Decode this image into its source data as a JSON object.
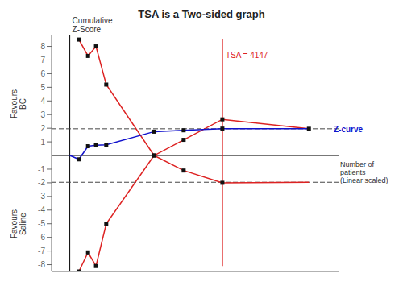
{
  "chart_data": {
    "type": "line",
    "title": "TSA is a Two-sided graph",
    "xlabel": "Number of\npatients\n(Linear scaled)",
    "ylabel": "Cumulative\nZ-Score",
    "annotations": [
      {
        "text": "TSA = 4147",
        "color": "#dd2222"
      },
      {
        "text": "Z-curve",
        "color": "#1111cc"
      },
      {
        "text": "Favours\nBC"
      },
      {
        "text": "Favours\nSaline"
      }
    ],
    "xlim": [
      -0.08,
      1.18
    ],
    "ylim": [
      -8.5,
      8.8
    ],
    "yticks": [
      -8,
      -7,
      -6,
      -5,
      -4,
      -3,
      -2,
      -1,
      1,
      2,
      3,
      4,
      5,
      6,
      7,
      8
    ],
    "tick_labels": "y",
    "series": [
      {
        "type": "hline",
        "values": [
          1.96,
          -1.96
        ],
        "color": "#444444",
        "line_style": "dashed"
      },
      {
        "type": "line",
        "x": [
          0.67,
          0.67
        ],
        "values": [
          -8.1,
          8.5
        ],
        "color": "#dd2222"
      },
      {
        "type": "line",
        "x": [
          0.04,
          0.08,
          0.115,
          0.16,
          0.37,
          0.5,
          0.67,
          1.05
        ],
        "values": [
          8.5,
          7.3,
          8.0,
          5.2,
          0.0,
          1.15,
          2.65,
          1.96
        ],
        "color": "#dd2222"
      },
      {
        "type": "line",
        "x": [
          0.04,
          0.08,
          0.115,
          0.16,
          0.37,
          0.5,
          0.67,
          1.05
        ],
        "values": [
          -8.5,
          -7.1,
          -8.1,
          -5.0,
          0.0,
          -1.1,
          -2.0,
          -1.96
        ],
        "color": "#dd2222"
      },
      {
        "type": "scatter",
        "marker": "square",
        "color": "#111111",
        "x": [
          0.04,
          0.08,
          0.115,
          0.16,
          0.37,
          0.5,
          0.67
        ],
        "values": [
          8.5,
          7.3,
          8.0,
          5.2,
          0.0,
          1.15,
          2.65
        ]
      },
      {
        "type": "scatter",
        "marker": "square",
        "color": "#111111",
        "x": [
          0.04,
          0.08,
          0.115,
          0.16,
          0.37,
          0.5,
          0.67
        ],
        "values": [
          -8.5,
          -7.1,
          -8.1,
          -5.0,
          0.0,
          -1.1,
          -2.0
        ]
      },
      {
        "type": "line",
        "x": [
          0.0,
          0.04,
          0.08,
          0.115,
          0.16,
          0.37,
          0.5,
          0.67,
          1.05
        ],
        "values": [
          0.0,
          -0.28,
          0.68,
          0.75,
          0.78,
          1.75,
          1.85,
          1.97,
          1.96
        ],
        "color": "#1111cc"
      },
      {
        "type": "scatter",
        "marker": "square",
        "color": "#111111",
        "x": [
          0.04,
          0.08,
          0.115,
          0.16,
          0.37,
          0.5,
          0.67,
          1.05
        ],
        "values": [
          -0.28,
          0.68,
          0.75,
          0.78,
          1.75,
          1.85,
          1.97,
          1.96
        ]
      }
    ]
  }
}
